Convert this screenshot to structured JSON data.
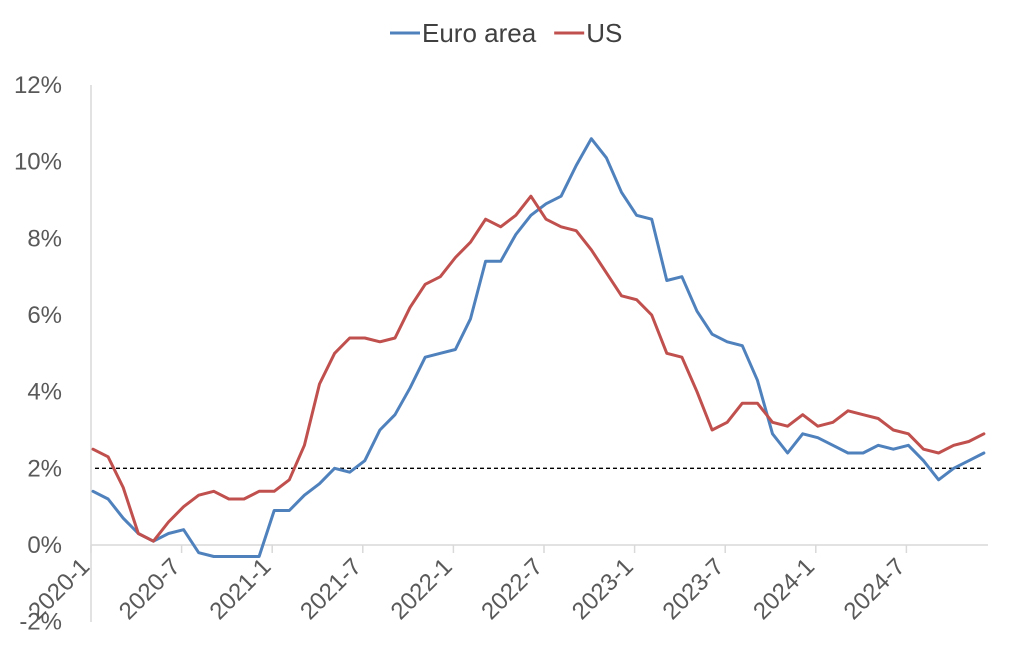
{
  "chart_data": {
    "type": "line",
    "title": "",
    "xlabel": "",
    "ylabel": "",
    "legend_position": "top",
    "ylim": [
      -2,
      12
    ],
    "yticks": [
      "-2%",
      "0%",
      "2%",
      "4%",
      "6%",
      "8%",
      "10%",
      "12%"
    ],
    "xticks": [
      "2020-1",
      "2020-7",
      "2021-1",
      "2021-7",
      "2022-1",
      "2022-7",
      "2023-1",
      "2023-7",
      "2024-1",
      "2024-7"
    ],
    "reference_line": {
      "y": 2,
      "style": "dashed",
      "color": "#000000"
    },
    "grid": false,
    "x": [
      "2020-1",
      "2020-2",
      "2020-3",
      "2020-4",
      "2020-5",
      "2020-6",
      "2020-7",
      "2020-8",
      "2020-9",
      "2020-10",
      "2020-11",
      "2020-12",
      "2021-1",
      "2021-2",
      "2021-3",
      "2021-4",
      "2021-5",
      "2021-6",
      "2021-7",
      "2021-8",
      "2021-9",
      "2021-10",
      "2021-11",
      "2021-12",
      "2022-1",
      "2022-2",
      "2022-3",
      "2022-4",
      "2022-5",
      "2022-6",
      "2022-7",
      "2022-8",
      "2022-9",
      "2022-10",
      "2022-11",
      "2022-12",
      "2023-1",
      "2023-2",
      "2023-3",
      "2023-4",
      "2023-5",
      "2023-6",
      "2023-7",
      "2023-8",
      "2023-9",
      "2023-10",
      "2023-11",
      "2023-12",
      "2024-1",
      "2024-2",
      "2024-3",
      "2024-4",
      "2024-5",
      "2024-6",
      "2024-7",
      "2024-8",
      "2024-9",
      "2024-10",
      "2024-11",
      "2024-12"
    ],
    "series": [
      {
        "name": "Euro area",
        "color": "#4F81BD",
        "values": [
          1.4,
          1.2,
          0.7,
          0.3,
          0.1,
          0.3,
          0.4,
          -0.2,
          -0.3,
          -0.3,
          -0.3,
          -0.3,
          0.9,
          0.9,
          1.3,
          1.6,
          2.0,
          1.9,
          2.2,
          3.0,
          3.4,
          4.1,
          4.9,
          5.0,
          5.1,
          5.9,
          7.4,
          7.4,
          8.1,
          8.6,
          8.9,
          9.1,
          9.9,
          10.6,
          10.1,
          9.2,
          8.6,
          8.5,
          6.9,
          7.0,
          6.1,
          5.5,
          5.3,
          5.2,
          4.3,
          2.9,
          2.4,
          2.9,
          2.8,
          2.6,
          2.4,
          2.4,
          2.6,
          2.5,
          2.6,
          2.2,
          1.7,
          2.0,
          2.2,
          2.4
        ]
      },
      {
        "name": "US",
        "color": "#C0504D",
        "values": [
          2.5,
          2.3,
          1.5,
          0.3,
          0.1,
          0.6,
          1.0,
          1.3,
          1.4,
          1.2,
          1.2,
          1.4,
          1.4,
          1.7,
          2.6,
          4.2,
          5.0,
          5.4,
          5.4,
          5.3,
          5.4,
          6.2,
          6.8,
          7.0,
          7.5,
          7.9,
          8.5,
          8.3,
          8.6,
          9.1,
          8.5,
          8.3,
          8.2,
          7.7,
          7.1,
          6.5,
          6.4,
          6.0,
          5.0,
          4.9,
          4.0,
          3.0,
          3.2,
          3.7,
          3.7,
          3.2,
          3.1,
          3.4,
          3.1,
          3.2,
          3.5,
          3.4,
          3.3,
          3.0,
          2.9,
          2.5,
          2.4,
          2.6,
          2.7,
          2.9
        ]
      }
    ]
  }
}
